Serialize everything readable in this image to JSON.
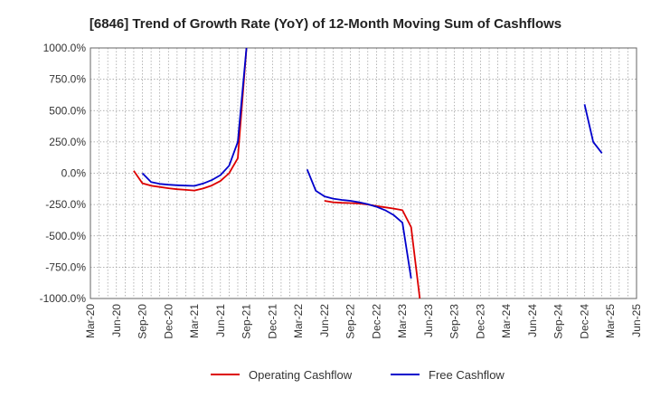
{
  "chart_data": {
    "type": "line",
    "title": "[6846]  Trend of Growth Rate (YoY) of 12-Month Moving Sum of Cashflows",
    "xlabel": "",
    "ylabel": "",
    "x_ticks": [
      "Mar-20",
      "Jun-20",
      "Sep-20",
      "Dec-20",
      "Mar-21",
      "Jun-21",
      "Sep-21",
      "Dec-21",
      "Mar-22",
      "Jun-22",
      "Sep-22",
      "Dec-22",
      "Mar-23",
      "Jun-23",
      "Sep-23",
      "Dec-23",
      "Mar-24",
      "Jun-24",
      "Sep-24",
      "Dec-24",
      "Mar-25",
      "Jun-25"
    ],
    "y_ticks": [
      "1000.0%",
      "750.0%",
      "500.0%",
      "250.0%",
      "0.0%",
      "-250.0%",
      "-500.0%",
      "-750.0%",
      "-1000.0%"
    ],
    "y_tick_values": [
      1000,
      750,
      500,
      250,
      0,
      -250,
      -500,
      -750,
      -1000
    ],
    "ylim": [
      -1000,
      1000
    ],
    "grid": true,
    "legend_position": "bottom-center",
    "series": [
      {
        "name": "Operating Cashflow",
        "color": "#dd0000",
        "points": [
          [
            "Aug-20",
            20
          ],
          [
            "Sep-20",
            -80
          ],
          [
            "Oct-20",
            -100
          ],
          [
            "Nov-20",
            -110
          ],
          [
            "Dec-20",
            -120
          ],
          [
            "Jan-21",
            -128
          ],
          [
            "Feb-21",
            -133
          ],
          [
            "Mar-21",
            -138
          ],
          [
            "Apr-21",
            -122
          ],
          [
            "May-21",
            -98
          ],
          [
            "Jun-21",
            -62
          ],
          [
            "Jul-21",
            0
          ],
          [
            "Aug-21",
            120
          ],
          [
            "Sep-21",
            1000
          ],
          null,
          [
            "Jun-22",
            -220
          ],
          [
            "Jul-22",
            -232
          ],
          [
            "Aug-22",
            -236
          ],
          [
            "Sep-22",
            -238
          ],
          [
            "Oct-22",
            -242
          ],
          [
            "Nov-22",
            -250
          ],
          [
            "Dec-22",
            -262
          ],
          [
            "Jan-23",
            -272
          ],
          [
            "Feb-23",
            -282
          ],
          [
            "Mar-23",
            -295
          ],
          [
            "Apr-23",
            -430
          ],
          [
            "May-23",
            -1000
          ]
        ]
      },
      {
        "name": "Free Cashflow",
        "color": "#0000cc",
        "points": [
          [
            "Sep-20",
            0
          ],
          [
            "Oct-20",
            -70
          ],
          [
            "Nov-20",
            -85
          ],
          [
            "Dec-20",
            -92
          ],
          [
            "Jan-21",
            -96
          ],
          [
            "Feb-21",
            -99
          ],
          [
            "Mar-21",
            -101
          ],
          [
            "Apr-21",
            -82
          ],
          [
            "May-21",
            -55
          ],
          [
            "Jun-21",
            -15
          ],
          [
            "Jul-21",
            60
          ],
          [
            "Aug-21",
            250
          ],
          [
            "Sep-21",
            1000
          ],
          null,
          [
            "Apr-22",
            30
          ],
          [
            "May-22",
            -140
          ],
          [
            "Jun-22",
            -185
          ],
          [
            "Jul-22",
            -203
          ],
          [
            "Aug-22",
            -213
          ],
          [
            "Sep-22",
            -220
          ],
          [
            "Oct-22",
            -232
          ],
          [
            "Nov-22",
            -248
          ],
          [
            "Dec-22",
            -268
          ],
          [
            "Jan-23",
            -295
          ],
          [
            "Feb-23",
            -335
          ],
          [
            "Mar-23",
            -395
          ],
          [
            "Apr-23",
            -840
          ],
          null,
          [
            "Dec-24",
            550
          ],
          [
            "Jan-25",
            250
          ],
          [
            "Feb-25",
            160
          ]
        ]
      }
    ]
  }
}
